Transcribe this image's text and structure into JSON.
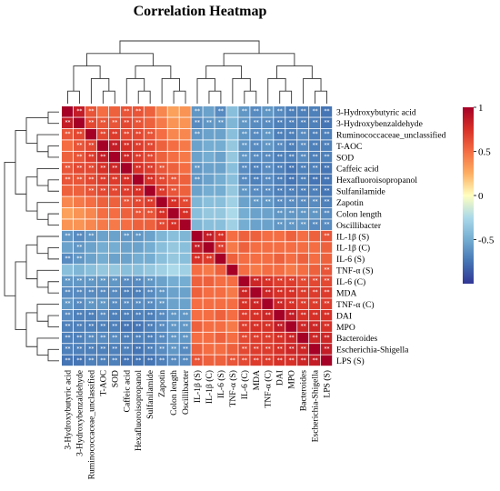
{
  "chart_data": {
    "type": "heatmap",
    "title": "Correlation Heatmap",
    "rows": [
      "3-Hydroxybutyric acid",
      "3-Hydroxybenzaldehyde",
      "Ruminococcaceae_unclassified",
      "T-AOC",
      "SOD",
      "Caffeic acid",
      "Hexafluoroisopropanol",
      "Sulfanilamide",
      "Zapotin",
      "Colon length",
      "Oscillibacter",
      "IL-1β (S)",
      "IL-1β (C)",
      "IL-6 (S)",
      "TNF-α (S)",
      "IL-6 (C)",
      "MDA",
      "TNF-α (C)",
      "DAI",
      "MPO",
      "Bacteroides",
      "Escherichia-Shigella",
      "LPS (S)"
    ],
    "columns": [
      "3-Hydroxybutyric acid",
      "3-Hydroxybenzaldehyde",
      "Ruminococcaceae_unclassified",
      "T-AOC",
      "SOD",
      "Caffeic acid",
      "Hexafluoroisopropanol",
      "Sulfanilamide",
      "Zapotin",
      "Colon length",
      "Oscillibacter",
      "IL-1β (S)",
      "IL-1β (C)",
      "IL-6 (S)",
      "TNF-α (S)",
      "IL-6 (C)",
      "MDA",
      "TNF-α (C)",
      "DAI",
      "MPO",
      "Bacteroides",
      "Escherichia-Shigella",
      "LPS (S)"
    ],
    "group_a_size": 11,
    "values": [
      [
        1,
        0.85,
        0.6,
        0.5,
        0.55,
        0.6,
        0.6,
        0.55,
        0.4,
        0.3,
        0.35,
        -0.6,
        -0.55,
        -0.65,
        -0.4,
        -0.6,
        -0.65,
        -0.6,
        -0.65,
        -0.7,
        -0.7,
        -0.7,
        -0.75
      ],
      [
        0.85,
        1,
        0.65,
        0.6,
        0.6,
        0.65,
        0.6,
        0.55,
        0.45,
        0.35,
        0.35,
        -0.65,
        -0.6,
        -0.6,
        -0.45,
        -0.6,
        -0.65,
        -0.65,
        -0.7,
        -0.7,
        -0.7,
        -0.7,
        -0.75
      ],
      [
        0.6,
        0.65,
        1,
        0.65,
        0.7,
        0.65,
        0.65,
        0.6,
        0.5,
        0.4,
        0.4,
        -0.6,
        -0.55,
        -0.55,
        -0.4,
        -0.6,
        -0.65,
        -0.6,
        -0.7,
        -0.7,
        -0.65,
        -0.7,
        -0.7
      ],
      [
        0.5,
        0.6,
        0.65,
        1,
        0.85,
        0.75,
        0.7,
        0.65,
        0.55,
        0.5,
        0.45,
        -0.55,
        -0.5,
        -0.5,
        -0.35,
        -0.6,
        -0.65,
        -0.6,
        -0.65,
        -0.7,
        -0.65,
        -0.7,
        -0.7
      ],
      [
        0.55,
        0.6,
        0.7,
        0.85,
        1,
        0.8,
        0.7,
        0.65,
        0.55,
        0.5,
        0.45,
        -0.55,
        -0.5,
        -0.55,
        -0.35,
        -0.6,
        -0.65,
        -0.65,
        -0.7,
        -0.7,
        -0.65,
        -0.7,
        -0.7
      ],
      [
        0.6,
        0.65,
        0.65,
        0.75,
        0.8,
        1,
        0.75,
        0.7,
        0.6,
        0.55,
        0.5,
        -0.6,
        -0.55,
        -0.55,
        -0.4,
        -0.65,
        -0.7,
        -0.65,
        -0.7,
        -0.75,
        -0.7,
        -0.7,
        -0.75
      ],
      [
        0.6,
        0.6,
        0.65,
        0.7,
        0.7,
        0.75,
        1,
        0.75,
        0.65,
        0.6,
        0.55,
        -0.6,
        -0.55,
        -0.5,
        -0.4,
        -0.65,
        -0.7,
        -0.65,
        -0.7,
        -0.75,
        -0.7,
        -0.75,
        -0.75
      ],
      [
        0.55,
        0.55,
        0.6,
        0.65,
        0.65,
        0.7,
        0.75,
        1,
        0.7,
        0.6,
        0.55,
        -0.55,
        -0.5,
        -0.5,
        -0.35,
        -0.6,
        -0.65,
        -0.65,
        -0.7,
        -0.7,
        -0.7,
        -0.7,
        -0.75
      ],
      [
        0.4,
        0.45,
        0.5,
        0.55,
        0.55,
        0.6,
        0.65,
        0.7,
        1,
        0.75,
        0.65,
        -0.45,
        -0.4,
        -0.4,
        -0.3,
        -0.55,
        -0.6,
        -0.6,
        -0.65,
        -0.65,
        -0.65,
        -0.65,
        -0.7
      ],
      [
        0.3,
        0.35,
        0.4,
        0.5,
        0.5,
        0.55,
        0.6,
        0.6,
        0.75,
        1,
        0.75,
        -0.4,
        -0.35,
        -0.35,
        -0.25,
        -0.5,
        -0.55,
        -0.55,
        -0.6,
        -0.6,
        -0.6,
        -0.6,
        -0.65
      ],
      [
        0.35,
        0.35,
        0.4,
        0.45,
        0.45,
        0.5,
        0.55,
        0.55,
        0.65,
        0.75,
        1,
        -0.45,
        -0.4,
        -0.4,
        -0.3,
        -0.5,
        -0.55,
        -0.55,
        -0.6,
        -0.6,
        -0.6,
        -0.65,
        -0.65
      ],
      [
        -0.6,
        -0.65,
        -0.6,
        -0.55,
        -0.55,
        -0.6,
        -0.6,
        -0.55,
        -0.45,
        -0.4,
        -0.45,
        1,
        0.85,
        0.75,
        0.5,
        0.55,
        0.55,
        0.5,
        0.5,
        0.55,
        0.5,
        0.55,
        0.6
      ],
      [
        -0.55,
        -0.6,
        -0.55,
        -0.5,
        -0.5,
        -0.55,
        -0.55,
        -0.5,
        -0.4,
        -0.35,
        -0.4,
        0.85,
        1,
        0.7,
        0.45,
        0.55,
        0.5,
        0.5,
        0.5,
        0.5,
        0.5,
        0.5,
        0.55
      ],
      [
        -0.65,
        -0.6,
        -0.55,
        -0.5,
        -0.55,
        -0.55,
        -0.5,
        -0.5,
        -0.4,
        -0.35,
        -0.4,
        0.75,
        0.7,
        1,
        0.55,
        0.5,
        0.5,
        0.5,
        0.55,
        0.5,
        0.55,
        0.5,
        0.55
      ],
      [
        -0.4,
        -0.45,
        -0.4,
        -0.35,
        -0.35,
        -0.4,
        -0.4,
        -0.35,
        -0.3,
        -0.25,
        -0.3,
        0.5,
        0.45,
        0.55,
        1,
        0.5,
        0.45,
        0.5,
        0.5,
        0.45,
        0.5,
        0.55,
        0.6
      ],
      [
        -0.6,
        -0.6,
        -0.6,
        -0.6,
        -0.6,
        -0.65,
        -0.65,
        -0.6,
        -0.55,
        -0.5,
        -0.5,
        0.55,
        0.55,
        0.5,
        0.5,
        1,
        0.8,
        0.75,
        0.7,
        0.7,
        0.65,
        0.65,
        0.65
      ],
      [
        -0.65,
        -0.65,
        -0.65,
        -0.65,
        -0.65,
        -0.7,
        -0.7,
        -0.65,
        -0.6,
        -0.55,
        -0.55,
        0.55,
        0.5,
        0.5,
        0.45,
        0.8,
        1,
        0.8,
        0.75,
        0.75,
        0.7,
        0.7,
        0.7
      ],
      [
        -0.6,
        -0.65,
        -0.6,
        -0.6,
        -0.65,
        -0.65,
        -0.65,
        -0.65,
        -0.6,
        -0.55,
        -0.55,
        0.5,
        0.5,
        0.5,
        0.5,
        0.75,
        0.8,
        1,
        0.8,
        0.75,
        0.7,
        0.7,
        0.7
      ],
      [
        -0.65,
        -0.7,
        -0.7,
        -0.65,
        -0.7,
        -0.7,
        -0.7,
        -0.7,
        -0.65,
        -0.6,
        -0.6,
        0.5,
        0.5,
        0.55,
        0.5,
        0.7,
        0.75,
        0.8,
        1,
        0.85,
        0.75,
        0.75,
        0.75
      ],
      [
        -0.7,
        -0.7,
        -0.7,
        -0.7,
        -0.7,
        -0.75,
        -0.75,
        -0.7,
        -0.65,
        -0.6,
        -0.6,
        0.55,
        0.5,
        0.5,
        0.45,
        0.7,
        0.75,
        0.75,
        0.85,
        1,
        0.8,
        0.8,
        0.75
      ],
      [
        -0.7,
        -0.7,
        -0.65,
        -0.65,
        -0.65,
        -0.7,
        -0.7,
        -0.7,
        -0.65,
        -0.6,
        -0.6,
        0.5,
        0.5,
        0.55,
        0.5,
        0.65,
        0.7,
        0.7,
        0.75,
        0.8,
        1,
        0.8,
        0.8
      ],
      [
        -0.7,
        -0.7,
        -0.7,
        -0.7,
        -0.7,
        -0.7,
        -0.75,
        -0.7,
        -0.65,
        -0.6,
        -0.65,
        0.55,
        0.5,
        0.5,
        0.55,
        0.65,
        0.7,
        0.7,
        0.75,
        0.8,
        0.8,
        1,
        0.85
      ],
      [
        -0.75,
        -0.75,
        -0.7,
        -0.7,
        -0.7,
        -0.75,
        -0.75,
        -0.75,
        -0.7,
        -0.65,
        -0.65,
        0.6,
        0.55,
        0.55,
        0.6,
        0.65,
        0.7,
        0.7,
        0.75,
        0.75,
        0.8,
        0.85,
        1
      ]
    ],
    "colorbar": {
      "range": [
        -1,
        1
      ],
      "ticks": [
        1,
        0.5,
        0,
        -0.5
      ]
    },
    "significance_marker": "**",
    "colors": {
      "high": "#a50026",
      "mid": "#ffffbf",
      "low": "#313695"
    },
    "dendrogram": "hierarchical clustering on rows and columns"
  }
}
